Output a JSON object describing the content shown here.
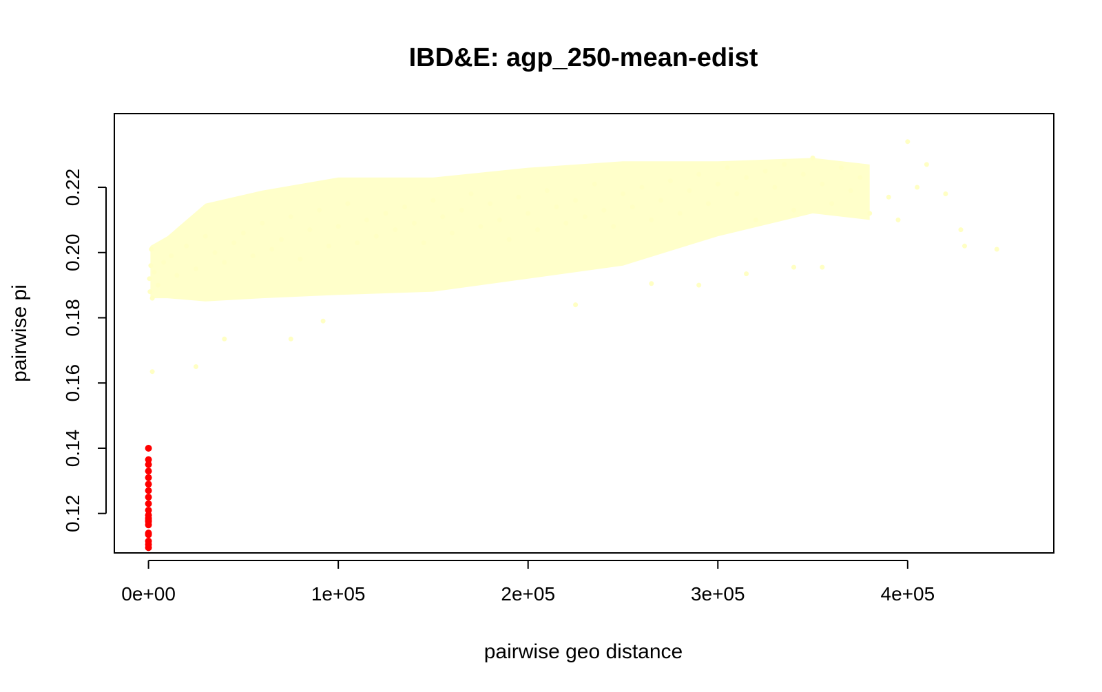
{
  "chart_data": {
    "type": "scatter",
    "title": "IBD&E: agp_250-mean-edist",
    "xlabel": "pairwise geo distance",
    "ylabel": "pairwise pi",
    "xlim": [
      -18000,
      477000
    ],
    "ylim": [
      0.1079,
      0.2426
    ],
    "x_ticks": [
      0,
      100000,
      200000,
      300000,
      400000
    ],
    "x_tick_labels": [
      "0e+00",
      "1e+05",
      "2e+05",
      "3e+05",
      "4e+05"
    ],
    "y_ticks": [
      0.12,
      0.14,
      0.16,
      0.18,
      0.2,
      0.22
    ],
    "y_tick_labels": [
      "0.12",
      "0.14",
      "0.16",
      "0.18",
      "0.20",
      "0.22"
    ],
    "grid": false,
    "legend": "none",
    "colors": {
      "background_points": "#FFFFC4",
      "highlight_points": "#FF0000",
      "axis": "#000000"
    },
    "series": [
      {
        "color": "#FFFFC4",
        "x": [
          500,
          800,
          1200,
          1500,
          2000,
          3000,
          5000,
          8000,
          12000,
          15000,
          20000,
          25000,
          30000,
          35000,
          40000,
          45000,
          50000,
          55000,
          60000,
          65000,
          70000,
          75000,
          80000,
          85000,
          90000,
          95000,
          100000,
          105000,
          110000,
          115000,
          120000,
          125000,
          130000,
          135000,
          140000,
          145000,
          150000,
          155000,
          160000,
          165000,
          170000,
          175000,
          180000,
          185000,
          190000,
          195000,
          200000,
          205000,
          210000,
          215000,
          220000,
          225000,
          230000,
          235000,
          240000,
          245000,
          250000,
          255000,
          260000,
          265000,
          270000,
          275000,
          280000,
          285000,
          290000,
          295000,
          300000,
          305000,
          310000,
          315000,
          320000,
          325000,
          330000,
          335000,
          340000,
          345000,
          350000,
          355000,
          360000,
          365000,
          370000,
          375000,
          380000,
          390000,
          395000,
          400000,
          405000,
          410000,
          420000,
          428000,
          430000,
          447000,
          2000,
          25000,
          40000,
          75000,
          92000,
          225000,
          265000,
          290000,
          315000,
          340000,
          355000
        ],
        "y": [
          0.192,
          0.188,
          0.196,
          0.201,
          0.186,
          0.194,
          0.19,
          0.197,
          0.199,
          0.193,
          0.202,
          0.195,
          0.205,
          0.2,
          0.197,
          0.203,
          0.206,
          0.199,
          0.209,
          0.201,
          0.204,
          0.211,
          0.198,
          0.207,
          0.213,
          0.202,
          0.208,
          0.215,
          0.203,
          0.21,
          0.205,
          0.212,
          0.207,
          0.214,
          0.209,
          0.203,
          0.216,
          0.211,
          0.206,
          0.213,
          0.218,
          0.208,
          0.215,
          0.21,
          0.204,
          0.217,
          0.212,
          0.207,
          0.219,
          0.214,
          0.209,
          0.216,
          0.211,
          0.221,
          0.213,
          0.208,
          0.218,
          0.214,
          0.22,
          0.21,
          0.216,
          0.222,
          0.212,
          0.219,
          0.224,
          0.215,
          0.221,
          0.226,
          0.218,
          0.223,
          0.21,
          0.225,
          0.22,
          0.227,
          0.213,
          0.224,
          0.229,
          0.221,
          0.215,
          0.226,
          0.219,
          0.223,
          0.212,
          0.217,
          0.21,
          0.234,
          0.22,
          0.227,
          0.218,
          0.207,
          0.202,
          0.201,
          0.1635,
          0.165,
          0.1735,
          0.1735,
          0.179,
          0.184,
          0.1905,
          0.19,
          0.1935,
          0.1955,
          0.1955
        ]
      },
      {
        "color": "#FF0000",
        "x": [
          0,
          0,
          0,
          0,
          0,
          0,
          0,
          0,
          0,
          0,
          0,
          0,
          0,
          0,
          0,
          0,
          0,
          0,
          0,
          0
        ],
        "y": [
          0.14,
          0.1365,
          0.135,
          0.133,
          0.131,
          0.129,
          0.127,
          0.125,
          0.123,
          0.121,
          0.1195,
          0.1185,
          0.118,
          0.1175,
          0.1165,
          0.114,
          0.1135,
          0.1115,
          0.1105,
          0.1095
        ]
      }
    ]
  }
}
